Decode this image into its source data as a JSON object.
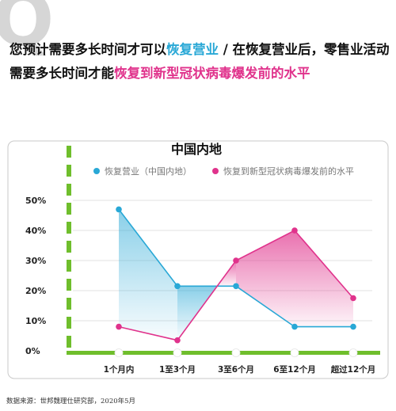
{
  "colors": {
    "cyan": "#29a8d6",
    "magenta": "#e0338c",
    "green": "#6fbe2c",
    "grid": "#d9d9d9",
    "frame": "#c9c9c9"
  },
  "header": {
    "q_letter": "Q",
    "question_parts": [
      {
        "text": "您预计需要多长时间才可以",
        "color": "#111111"
      },
      {
        "text": "恢复营业",
        "color": "#29a8d6"
      },
      {
        "text": " / 在恢复营业后，零售业活动需要多长时间才能",
        "color": "#111111"
      },
      {
        "text": "恢复到新型冠状病毒爆发前的水平",
        "color": "#e0338c"
      }
    ]
  },
  "chart_data": {
    "type": "line",
    "title": "中国内地",
    "categories": [
      "1个月内",
      "1至3个月",
      "3至6个月",
      "6至12个月",
      "超过12个月"
    ],
    "y_ticks": [
      "50%",
      "40%",
      "30%",
      "20%",
      "10%",
      "0%"
    ],
    "ylim": [
      0,
      50
    ],
    "series": [
      {
        "name": "恢复营业（中国内地）",
        "color": "#29a8d6",
        "values": [
          47,
          21.5,
          21.5,
          8,
          8
        ]
      },
      {
        "name": "恢复到新型冠状病毒爆发前的水平",
        "color": "#e0338c",
        "values": [
          8,
          3.5,
          30,
          40,
          17.5
        ]
      }
    ],
    "legend_position": "top"
  },
  "footer": {
    "source": "数据来源：世邦魏理仕研究部，2020年5月"
  }
}
